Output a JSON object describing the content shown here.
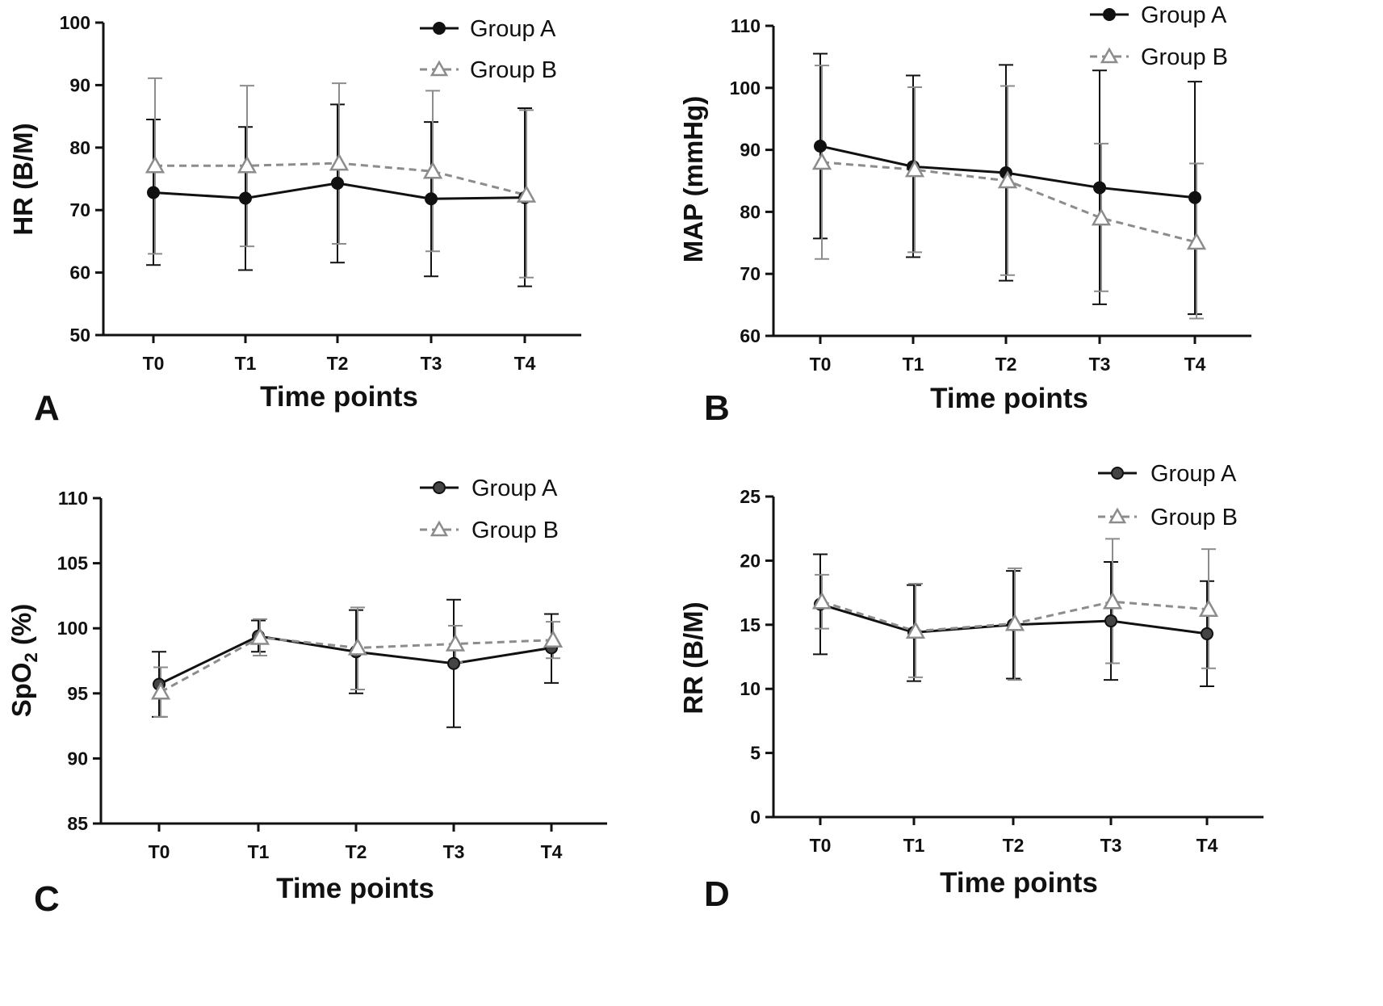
{
  "chart_data": [
    {
      "panel": "A",
      "type": "line",
      "xlabel": "Time points",
      "ylabel": "HR (B/M)",
      "categories": [
        "T0",
        "T1",
        "T2",
        "T3",
        "T4"
      ],
      "ylim": [
        50,
        100
      ],
      "yticks": [
        50,
        60,
        70,
        80,
        90,
        100
      ],
      "legend": "top-right",
      "series": [
        {
          "name": "Group A",
          "color": "#111111",
          "values": [
            72.8,
            71.9,
            74.3,
            71.8,
            72.0
          ],
          "err_low": [
            61.2,
            60.4,
            61.6,
            59.4,
            57.8
          ],
          "err_high": [
            84.5,
            83.3,
            86.9,
            84.1,
            86.3
          ]
        },
        {
          "name": "Group B",
          "color": "#8c8c8c",
          "values": [
            77.1,
            77.1,
            77.5,
            76.2,
            72.4
          ],
          "err_low": [
            63.0,
            64.2,
            64.6,
            63.4,
            59.2
          ],
          "err_high": [
            91.1,
            89.9,
            90.3,
            89.1,
            86.0
          ]
        }
      ]
    },
    {
      "panel": "B",
      "type": "line",
      "xlabel": "Time points",
      "ylabel": "MAP (mmHg)",
      "categories": [
        "T0",
        "T1",
        "T2",
        "T3",
        "T4"
      ],
      "ylim": [
        60,
        110
      ],
      "yticks": [
        60,
        70,
        80,
        90,
        100,
        110
      ],
      "legend": "top-right",
      "series": [
        {
          "name": "Group A",
          "color": "#111111",
          "values": [
            90.6,
            87.3,
            86.3,
            83.9,
            82.3
          ],
          "err_low": [
            75.7,
            72.7,
            68.9,
            65.1,
            63.5
          ],
          "err_high": [
            105.5,
            102.0,
            103.7,
            102.8,
            101.0
          ]
        },
        {
          "name": "Group B",
          "color": "#8c8c8c",
          "values": [
            88.0,
            86.8,
            85.0,
            79.0,
            75.1
          ],
          "err_low": [
            72.4,
            73.5,
            69.8,
            67.2,
            62.8
          ],
          "err_high": [
            103.6,
            100.1,
            100.3,
            91.0,
            87.8
          ]
        }
      ]
    },
    {
      "panel": "C",
      "type": "line",
      "xlabel": "Time points",
      "ylabel": "SpO2 (%)",
      "ylabel_main": "SpO",
      "ylabel_sub": "2",
      "ylabel_tail": " (%)",
      "categories": [
        "T0",
        "T1",
        "T2",
        "T3",
        "T4"
      ],
      "ylim": [
        85,
        110
      ],
      "yticks": [
        85,
        90,
        95,
        100,
        105,
        110
      ],
      "legend": "top-right",
      "series": [
        {
          "name": "Group A",
          "color": "#111111",
          "values": [
            95.7,
            99.4,
            98.2,
            97.3,
            98.5
          ],
          "err_low": [
            93.2,
            98.2,
            95.0,
            92.4,
            95.8
          ],
          "err_high": [
            98.2,
            100.6,
            101.4,
            102.2,
            101.1
          ]
        },
        {
          "name": "Group B",
          "color": "#8c8c8c",
          "values": [
            95.1,
            99.3,
            98.5,
            98.8,
            99.1
          ],
          "err_low": [
            93.2,
            97.9,
            95.3,
            97.4,
            97.7
          ],
          "err_high": [
            97.0,
            100.7,
            101.6,
            100.2,
            100.5
          ]
        }
      ]
    },
    {
      "panel": "D",
      "type": "line",
      "xlabel": "Time points",
      "ylabel": "RR (B/M)",
      "categories": [
        "T0",
        "T1",
        "T2",
        "T3",
        "T4"
      ],
      "ylim": [
        0,
        25
      ],
      "yticks": [
        0,
        5,
        10,
        15,
        20,
        25
      ],
      "legend": "top-right",
      "series": [
        {
          "name": "Group A",
          "color": "#111111",
          "values": [
            16.6,
            14.4,
            15.0,
            15.3,
            14.3
          ],
          "err_low": [
            12.7,
            10.6,
            10.8,
            10.7,
            10.2
          ],
          "err_high": [
            20.5,
            18.1,
            19.2,
            19.9,
            18.4
          ]
        },
        {
          "name": "Group B",
          "color": "#8c8c8c",
          "values": [
            16.8,
            14.5,
            15.1,
            16.8,
            16.2
          ],
          "err_low": [
            14.7,
            10.9,
            10.7,
            12.0,
            11.6
          ],
          "err_high": [
            18.9,
            18.2,
            19.4,
            21.7,
            20.9
          ]
        }
      ]
    }
  ]
}
